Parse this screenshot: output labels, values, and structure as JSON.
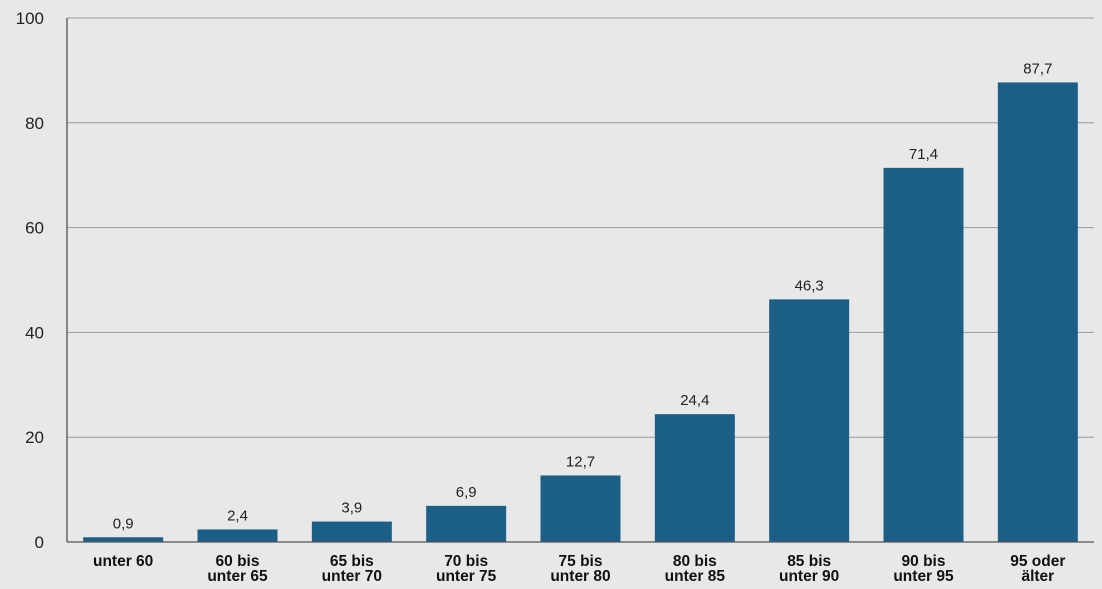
{
  "chart_data": {
    "type": "bar",
    "title": "",
    "xlabel": "",
    "ylabel": "",
    "ylim": [
      0,
      100
    ],
    "yticks": [
      0,
      20,
      40,
      60,
      80,
      100
    ],
    "grid": true,
    "categories": [
      [
        "unter 60"
      ],
      [
        "60 bis",
        "unter 65"
      ],
      [
        "65 bis",
        "unter 70"
      ],
      [
        "70 bis",
        "unter 75"
      ],
      [
        "75 bis",
        "unter 80"
      ],
      [
        "80 bis",
        "unter 85"
      ],
      [
        "85 bis",
        "unter 90"
      ],
      [
        "90 bis",
        "unter 95"
      ],
      [
        "95 oder",
        "älter"
      ]
    ],
    "values": [
      0.9,
      2.4,
      3.9,
      6.9,
      12.7,
      24.4,
      46.3,
      71.4,
      87.7
    ],
    "value_labels": [
      "0,9",
      "2,4",
      "3,9",
      "6,9",
      "12,7",
      "24,4",
      "46,3",
      "71,4",
      "87,7"
    ],
    "colors": {
      "bar": "#1b5f86",
      "background": "#e8e8e8"
    }
  }
}
